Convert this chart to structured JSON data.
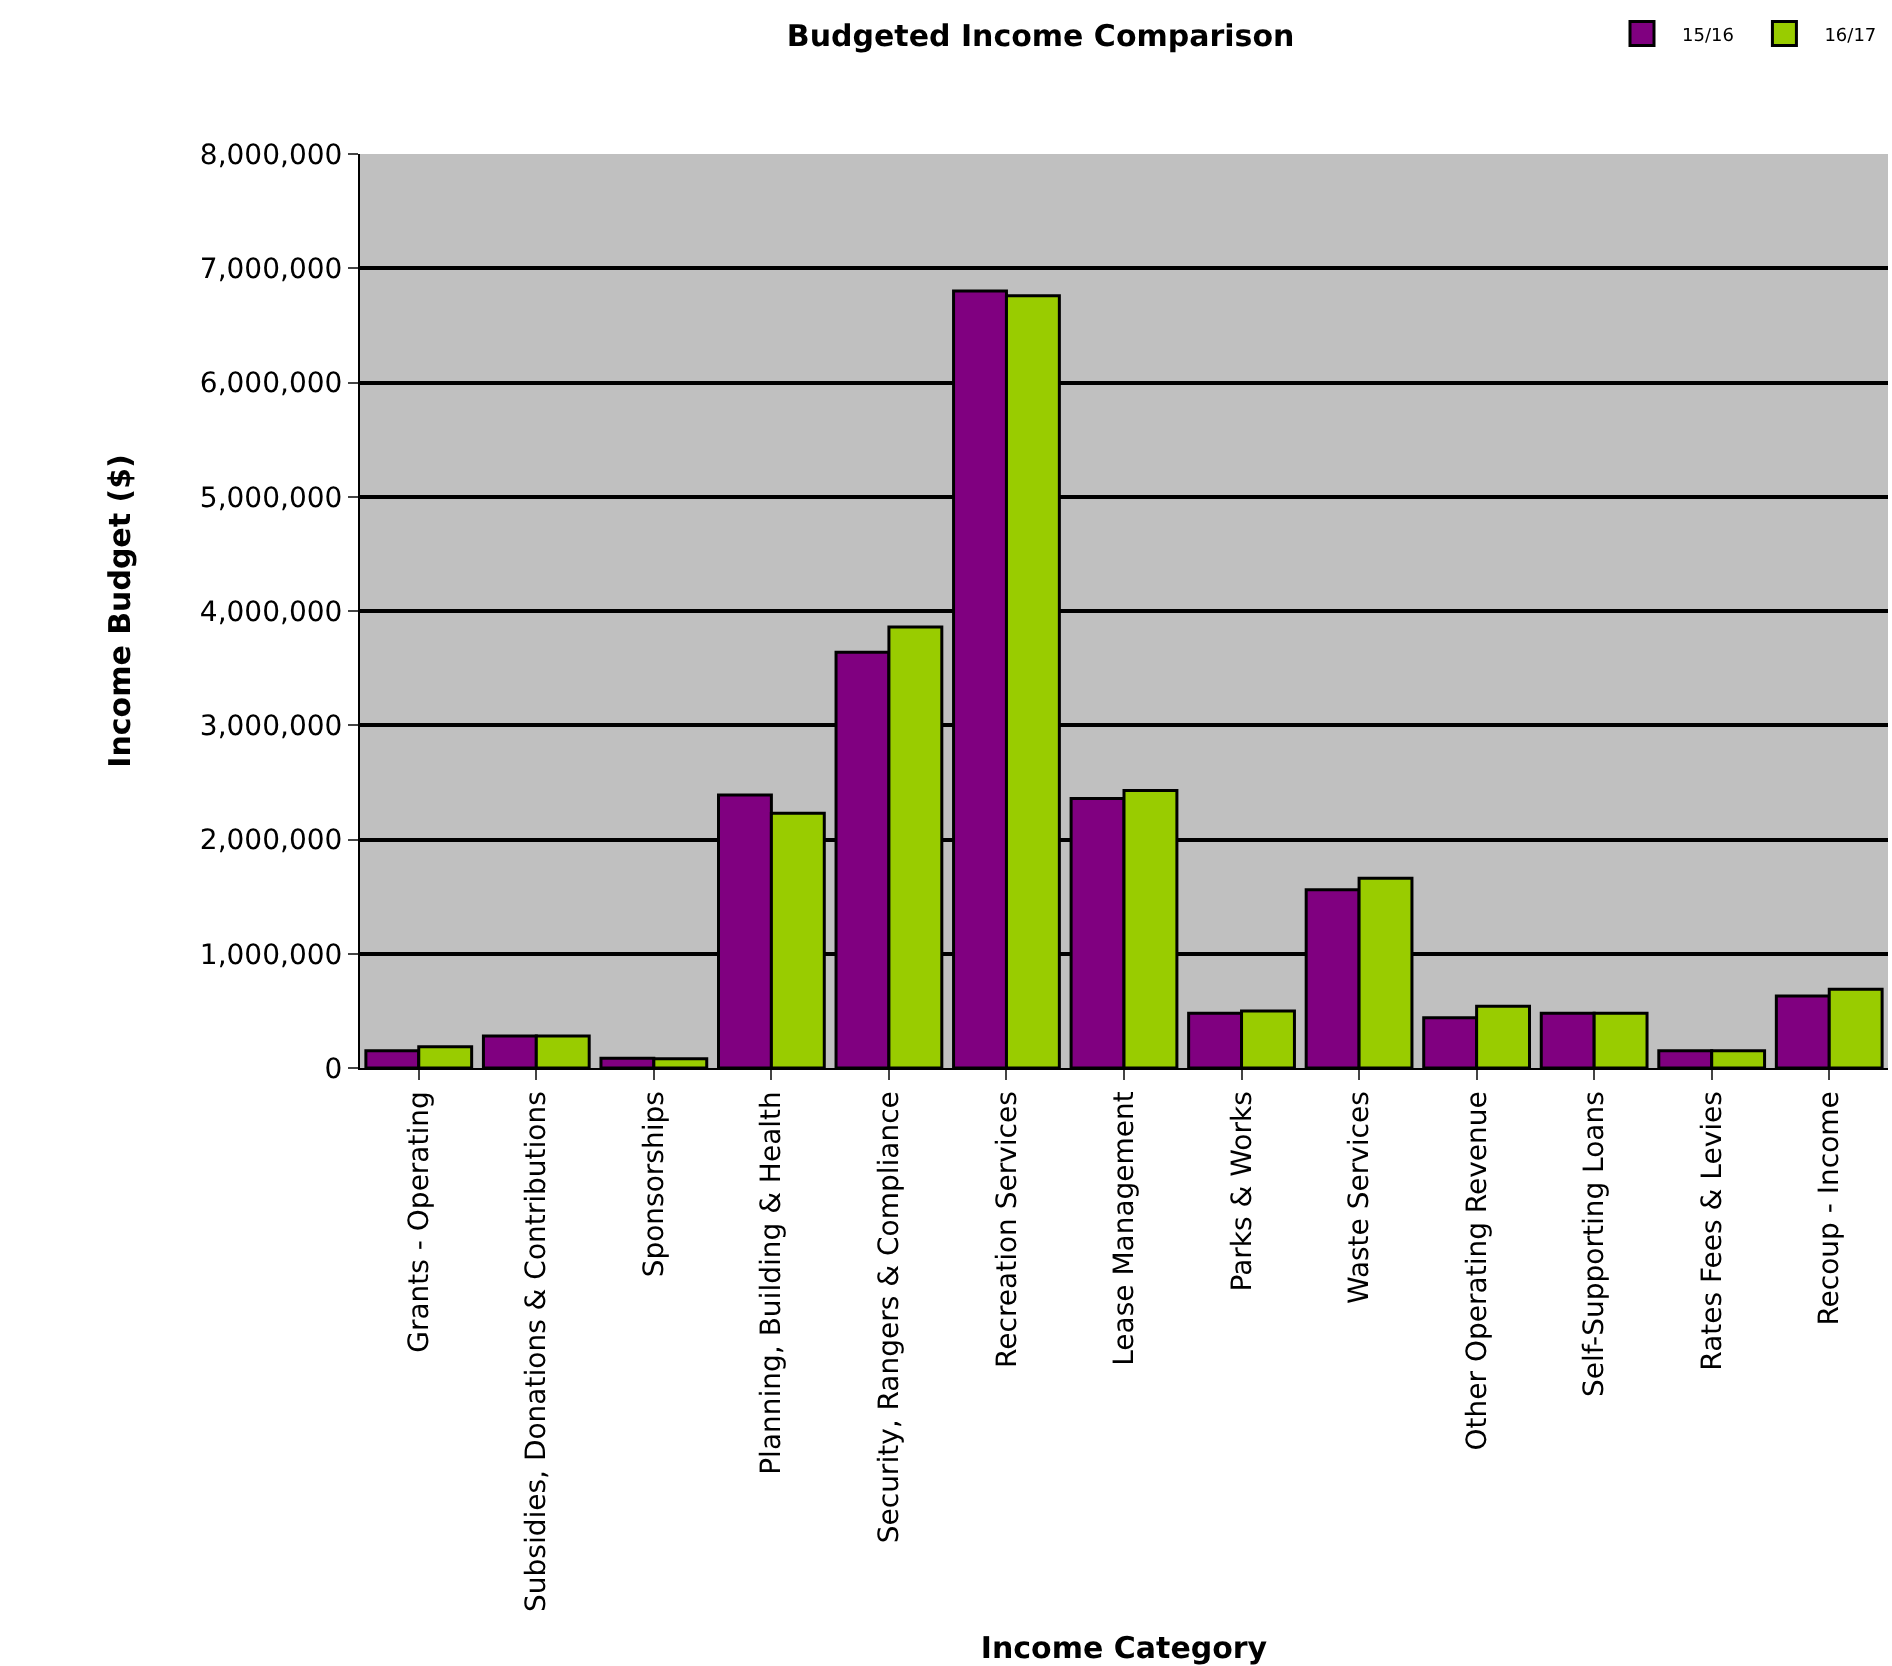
{
  "chart_data": {
    "type": "bar",
    "title": "Budgeted Income Comparison",
    "xlabel": "Income Category",
    "ylabel": "Income Budget ($)",
    "categories": [
      "Grants - Operating",
      "Subsidies, Donations & Contributions",
      "Sponsorships",
      "Planning, Building & Health",
      "Security, Rangers & Compliance",
      "Recreation Services",
      "Lease Management",
      "Parks & Works",
      "Waste Services",
      "Other Operating Revenue",
      "Self-Supporting Loans",
      "Rates Fees & Levies",
      "Recoup - Income"
    ],
    "series": [
      {
        "name": "15/16",
        "color": "#800080",
        "values": [
          150000,
          280000,
          85000,
          2390000,
          3640000,
          6800000,
          2360000,
          480000,
          1560000,
          440000,
          480000,
          150000,
          630000
        ]
      },
      {
        "name": "16/17",
        "color": "#99cc00",
        "values": [
          185000,
          280000,
          80000,
          2230000,
          3860000,
          6760000,
          2430000,
          500000,
          1660000,
          540000,
          480000,
          150000,
          690000
        ]
      }
    ],
    "ylim": [
      0,
      8000000
    ],
    "yticks": [
      {
        "value": 0,
        "label": "0"
      },
      {
        "value": 1000000,
        "label": "1,000,000"
      },
      {
        "value": 2000000,
        "label": "2,000,000"
      },
      {
        "value": 3000000,
        "label": "3,000,000"
      },
      {
        "value": 4000000,
        "label": "4,000,000"
      },
      {
        "value": 5000000,
        "label": "5,000,000"
      },
      {
        "value": 6000000,
        "label": "6,000,000"
      },
      {
        "value": 7000000,
        "label": "7,000,000"
      },
      {
        "value": 8000000,
        "label": "8,000,000"
      }
    ],
    "grid": "y",
    "legend": "top right"
  }
}
